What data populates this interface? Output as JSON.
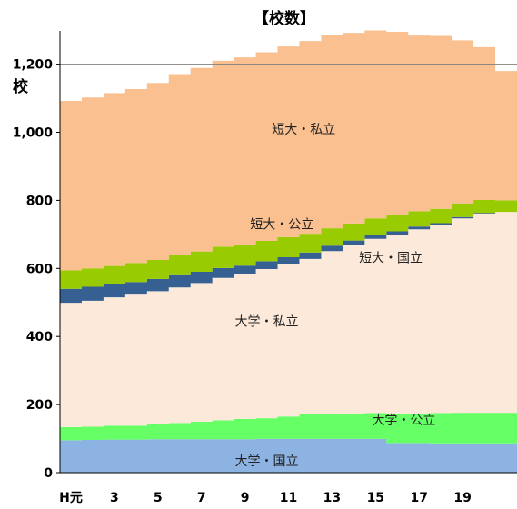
{
  "chart_data": {
    "type": "area",
    "title": "【校数】",
    "ylabel": "校",
    "xlabel": "",
    "ylim": [
      0,
      1300
    ],
    "y_ticks": [
      {
        "value": 0,
        "label": "0"
      },
      {
        "value": 200,
        "label": "200"
      },
      {
        "value": 400,
        "label": "400"
      },
      {
        "value": 600,
        "label": "600"
      },
      {
        "value": 800,
        "label": "800"
      },
      {
        "value": 1000,
        "label": "1,000"
      },
      {
        "value": 1200,
        "label": "1,200"
      }
    ],
    "x": [
      1,
      2,
      3,
      4,
      5,
      6,
      7,
      8,
      9,
      10,
      11,
      12,
      13,
      14,
      15,
      16,
      17,
      18,
      19,
      20,
      21
    ],
    "x_ticks": [
      {
        "value": 1,
        "label": "H元"
      },
      {
        "value": 3,
        "label": "3"
      },
      {
        "value": 5,
        "label": "5"
      },
      {
        "value": 7,
        "label": "7"
      },
      {
        "value": 9,
        "label": "9"
      },
      {
        "value": 11,
        "label": "11"
      },
      {
        "value": 13,
        "label": "13"
      },
      {
        "value": 15,
        "label": "15"
      },
      {
        "value": 17,
        "label": "17"
      },
      {
        "value": 19,
        "label": "19"
      }
    ],
    "stacked": true,
    "step": true,
    "grid": {
      "y_top_line": 1200
    },
    "series": [
      {
        "name": "大学・国立",
        "color": "#8db3e2",
        "values": [
          95,
          96,
          97,
          97,
          98,
          98,
          98,
          98,
          98,
          99,
          99,
          99,
          99,
          99,
          99,
          87,
          87,
          86,
          86,
          86,
          86
        ]
      },
      {
        "name": "大学・公立",
        "color": "#66ff66",
        "values": [
          39,
          39,
          41,
          41,
          46,
          48,
          52,
          56,
          60,
          61,
          66,
          72,
          74,
          75,
          76,
          86,
          86,
          89,
          90,
          90,
          90
        ]
      },
      {
        "name": "大学・私立",
        "color": "#fde9d9",
        "values": [
          365,
          370,
          377,
          385,
          389,
          398,
          407,
          418,
          425,
          438,
          448,
          457,
          478,
          495,
          512,
          526,
          542,
          553,
          571,
          585,
          590
        ]
      },
      {
        "name": "短大・国立",
        "color": "#366092",
        "values": [
          41,
          41,
          39,
          37,
          36,
          36,
          33,
          29,
          25,
          23,
          20,
          19,
          16,
          13,
          11,
          10,
          8,
          5,
          4,
          2,
          0
        ]
      },
      {
        "name": "短大・公立",
        "color": "#99cc00",
        "values": [
          54,
          54,
          53,
          56,
          56,
          60,
          60,
          63,
          62,
          60,
          59,
          55,
          51,
          50,
          49,
          48,
          45,
          42,
          40,
          38,
          34
        ]
      },
      {
        "name": "短大・私立",
        "color": "#fac090",
        "values": [
          498,
          502,
          508,
          511,
          520,
          531,
          539,
          546,
          550,
          554,
          560,
          566,
          567,
          560,
          552,
          538,
          516,
          508,
          479,
          449,
          380
        ]
      }
    ],
    "series_labels": [
      {
        "name": "大学・国立",
        "x": 10,
        "y": 35
      },
      {
        "name": "大学・公立",
        "x": 16.3,
        "y": 155
      },
      {
        "name": "大学・私立",
        "x": 10,
        "y": 445
      },
      {
        "name": "短大・国立",
        "x": 15.7,
        "y": 631
      },
      {
        "name": "短大・公立",
        "x": 10.7,
        "y": 730
      },
      {
        "name": "短大・私立",
        "x": 11.7,
        "y": 1010
      }
    ]
  }
}
